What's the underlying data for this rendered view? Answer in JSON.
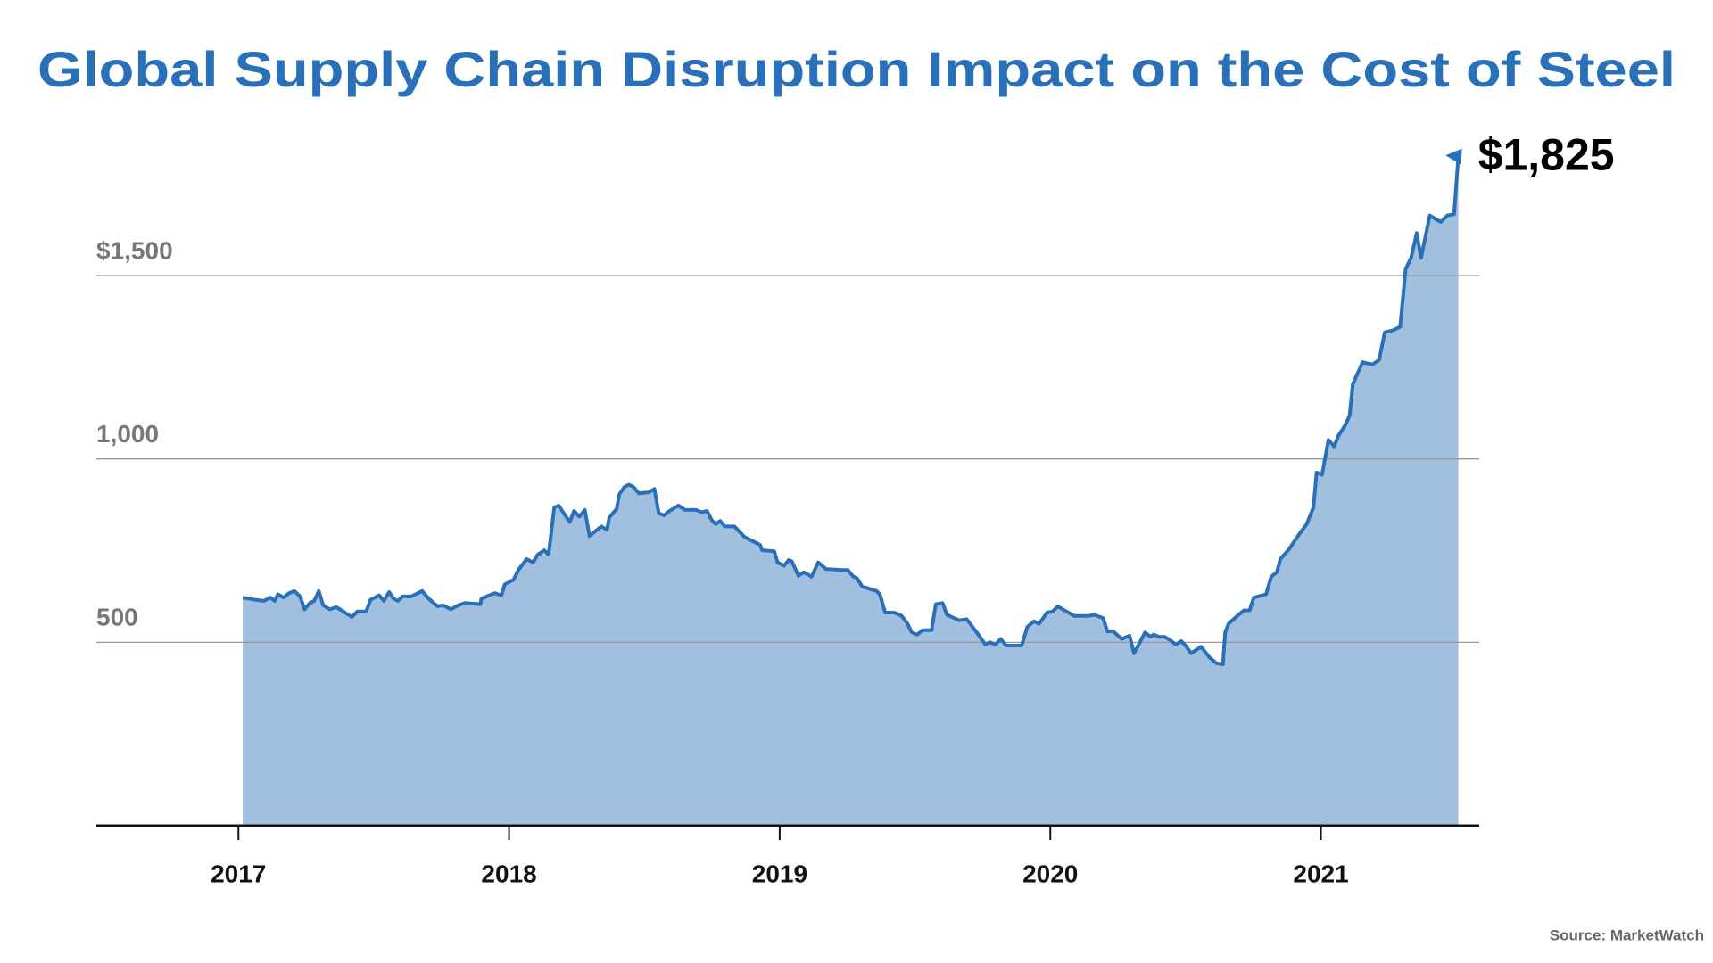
{
  "chart_data": {
    "type": "area",
    "title": "Global Supply Chain Disruption Impact on the Cost of Steel",
    "annotation": "$1,825",
    "source": "Source: MarketWatch",
    "line_color": "#2a70b8",
    "fill_color": "#a1bfdf",
    "xlim": [
      2016.475,
      2021.585
    ],
    "xticks": [
      2017,
      2018,
      2019,
      2020,
      2021
    ],
    "ylim": [
      0,
      1900
    ],
    "yticks": [
      500,
      {
        "value": 1000,
        "label": "1,000"
      },
      {
        "value": 1500,
        "label": "$1,500"
      }
    ],
    "grid": true,
    "x": [
      2017.016,
      2017.061,
      2017.093,
      2017.118,
      2017.134,
      2017.146,
      2017.167,
      2017.187,
      2017.207,
      2017.228,
      2017.244,
      2017.264,
      2017.28,
      2017.297,
      2017.313,
      2017.337,
      2017.362,
      2017.394,
      2017.419,
      2017.439,
      2017.472,
      2017.488,
      2017.52,
      2017.537,
      2017.557,
      2017.573,
      2017.589,
      2017.606,
      2017.638,
      2017.679,
      2017.703,
      2017.736,
      2017.756,
      2017.785,
      2017.813,
      2017.837,
      2017.894,
      2017.898,
      2017.947,
      2017.972,
      2017.984,
      2018.016,
      2018.037,
      2018.065,
      2018.089,
      2018.106,
      2018.13,
      2018.146,
      2018.167,
      2018.183,
      2018.224,
      2018.24,
      2018.26,
      2018.28,
      2018.297,
      2018.321,
      2018.341,
      2018.362,
      2018.37,
      2018.398,
      2018.407,
      2018.427,
      2018.443,
      2018.459,
      2018.48,
      2018.516,
      2018.537,
      2018.553,
      2018.573,
      2018.593,
      2018.626,
      2018.65,
      2018.691,
      2018.711,
      2018.732,
      2018.748,
      2018.764,
      2018.78,
      2018.797,
      2018.833,
      2018.87,
      2018.927,
      2018.935,
      2018.98,
      2018.992,
      2019.016,
      2019.033,
      2019.045,
      2019.069,
      2019.089,
      2019.118,
      2019.142,
      2019.171,
      2019.232,
      2019.252,
      2019.272,
      2019.285,
      2019.305,
      2019.358,
      2019.37,
      2019.39,
      2019.423,
      2019.451,
      2019.472,
      2019.488,
      2019.508,
      2019.528,
      2019.561,
      2019.577,
      2019.602,
      2019.618,
      2019.663,
      2019.691,
      2019.728,
      2019.76,
      2019.776,
      2019.797,
      2019.817,
      2019.837,
      2019.894,
      2019.915,
      2019.939,
      2019.959,
      2019.988,
      2020.008,
      2020.028,
      2020.053,
      2020.089,
      2020.142,
      2020.163,
      2020.195,
      2020.211,
      2020.232,
      2020.264,
      2020.293,
      2020.309,
      2020.329,
      2020.35,
      2020.37,
      2020.382,
      2020.402,
      2020.423,
      2020.443,
      2020.463,
      2020.484,
      2020.5,
      2020.52,
      2020.557,
      2020.589,
      2020.614,
      2020.638,
      2020.646,
      2020.659,
      2020.691,
      2020.715,
      2020.736,
      2020.752,
      2020.797,
      2020.817,
      2020.837,
      2020.85,
      2020.882,
      2020.915,
      2020.947,
      2020.972,
      2020.984,
      2021.004,
      2021.028,
      2021.049,
      2021.065,
      2021.089,
      2021.106,
      2021.118,
      2021.154,
      2021.167,
      2021.191,
      2021.215,
      2021.236,
      2021.268,
      2021.293,
      2021.313,
      2021.333,
      2021.354,
      2021.37,
      2021.402,
      2021.443,
      2021.467,
      2021.492,
      2021.508
    ],
    "values": [
      622,
      616,
      613,
      622,
      613,
      631,
      622,
      634,
      640,
      625,
      590,
      607,
      613,
      640,
      601,
      590,
      596,
      581,
      569,
      584,
      584,
      616,
      628,
      613,
      637,
      619,
      613,
      625,
      625,
      640,
      619,
      598,
      601,
      590,
      601,
      607,
      604,
      619,
      634,
      628,
      658,
      670,
      700,
      727,
      718,
      739,
      751,
      739,
      867,
      873,
      828,
      858,
      843,
      861,
      790,
      804,
      816,
      807,
      840,
      864,
      903,
      924,
      930,
      924,
      906,
      909,
      918,
      852,
      846,
      858,
      873,
      861,
      861,
      855,
      858,
      834,
      822,
      831,
      816,
      816,
      787,
      766,
      751,
      748,
      718,
      709,
      724,
      721,
      682,
      691,
      679,
      718,
      700,
      697,
      697,
      679,
      676,
      652,
      640,
      631,
      581,
      581,
      572,
      551,
      527,
      521,
      533,
      533,
      604,
      607,
      575,
      560,
      563,
      527,
      494,
      500,
      494,
      509,
      491,
      491,
      542,
      557,
      551,
      581,
      584,
      598,
      587,
      572,
      572,
      575,
      566,
      530,
      530,
      509,
      518,
      470,
      497,
      527,
      515,
      521,
      515,
      515,
      506,
      494,
      503,
      491,
      470,
      488,
      458,
      443,
      440,
      527,
      551,
      572,
      587,
      587,
      622,
      631,
      679,
      691,
      727,
      754,
      790,
      822,
      867,
      963,
      957,
      1052,
      1034,
      1064,
      1091,
      1118,
      1204,
      1264,
      1261,
      1258,
      1270,
      1345,
      1351,
      1360,
      1518,
      1548,
      1616,
      1548,
      1664,
      1646,
      1664,
      1667,
      1825
    ]
  }
}
